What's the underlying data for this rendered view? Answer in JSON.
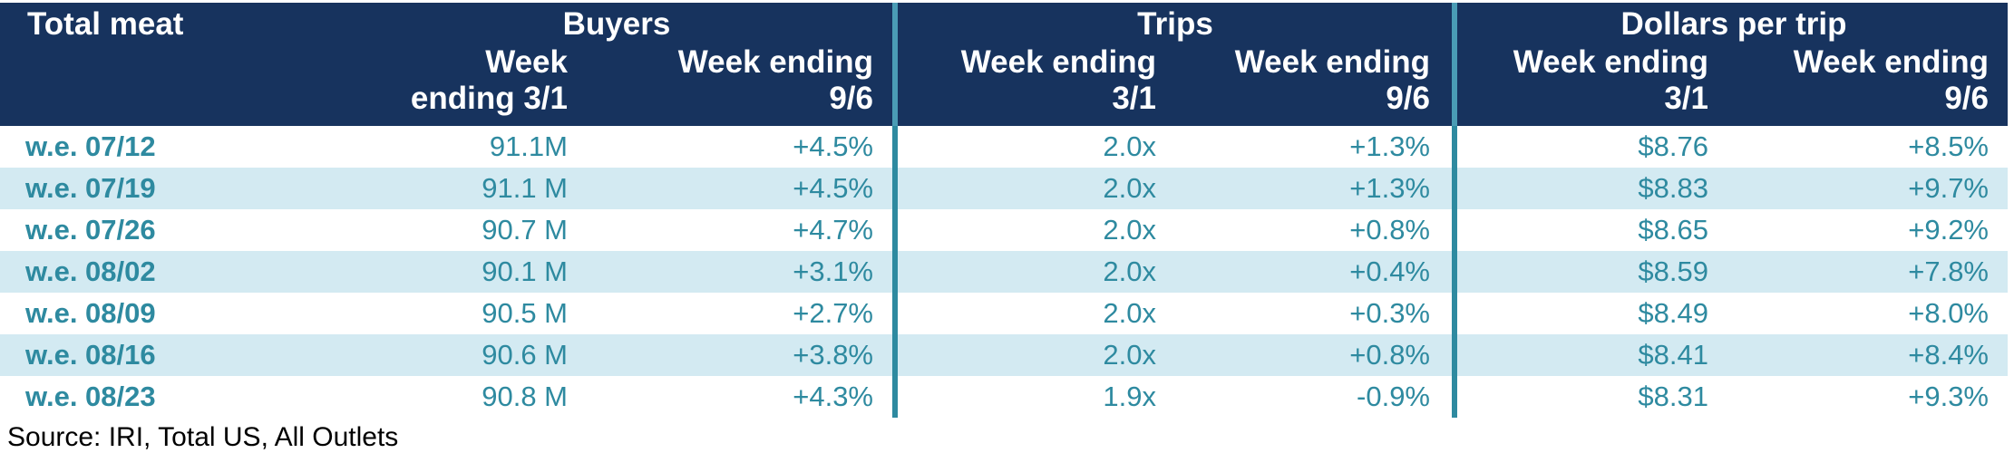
{
  "table": {
    "title": "Total meat",
    "groups": [
      "Buyers",
      "Trips",
      "Dollars per trip"
    ],
    "columns": [
      [
        "Week",
        "ending 3/1"
      ],
      [
        "Week ending",
        "9/6"
      ],
      [
        "Week ending",
        "3/1"
      ],
      [
        "Week ending",
        "9/6"
      ],
      [
        "Week ending",
        "3/1"
      ],
      [
        "Week ending",
        "9/6"
      ]
    ],
    "rows": [
      {
        "label": "w.e. 07/12",
        "cells": [
          "91.1M",
          "+4.5%",
          "2.0x",
          "+1.3%",
          "$8.76",
          "+8.5%"
        ]
      },
      {
        "label": "w.e. 07/19",
        "cells": [
          "91.1 M",
          "+4.5%",
          "2.0x",
          "+1.3%",
          "$8.83",
          "+9.7%"
        ]
      },
      {
        "label": "w.e. 07/26",
        "cells": [
          "90.7 M",
          "+4.7%",
          "2.0x",
          "+0.8%",
          "$8.65",
          "+9.2%"
        ]
      },
      {
        "label": "w.e. 08/02",
        "cells": [
          "90.1 M",
          "+3.1%",
          "2.0x",
          "+0.4%",
          "$8.59",
          "+7.8%"
        ]
      },
      {
        "label": "w.e. 08/09",
        "cells": [
          "90.5 M",
          "+2.7%",
          "2.0x",
          "+0.3%",
          "$8.49",
          "+8.0%"
        ]
      },
      {
        "label": "w.e. 08/16",
        "cells": [
          "90.6 M",
          "+3.8%",
          "2.0x",
          "+0.8%",
          "$8.41",
          "+8.4%"
        ]
      },
      {
        "label": "w.e. 08/23",
        "cells": [
          "90.8 M",
          "+4.3%",
          "1.9x",
          "-0.9%",
          "$8.31",
          "+9.3%"
        ]
      }
    ]
  },
  "footer": {
    "source": "Source: IRI, Total US, All Outlets"
  }
}
